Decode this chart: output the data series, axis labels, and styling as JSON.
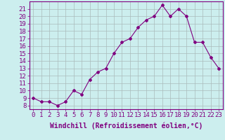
{
  "x": [
    0,
    1,
    2,
    3,
    4,
    5,
    6,
    7,
    8,
    9,
    10,
    11,
    12,
    13,
    14,
    15,
    16,
    17,
    18,
    19,
    20,
    21,
    22,
    23
  ],
  "y": [
    9.0,
    8.5,
    8.5,
    8.0,
    8.5,
    10.0,
    9.5,
    11.5,
    12.5,
    13.0,
    15.0,
    16.5,
    17.0,
    18.5,
    19.5,
    20.0,
    21.5,
    20.0,
    21.0,
    20.0,
    16.5,
    16.5,
    14.5,
    13.0
  ],
  "line_color": "#800080",
  "marker": "D",
  "marker_size": 2,
  "line_width": 0.8,
  "bg_color": "#cceeee",
  "grid_color": "#aabbbb",
  "xlabel": "Windchill (Refroidissement éolien,°C)",
  "xlabel_fontsize": 7,
  "ylabel_ticks": [
    8,
    9,
    10,
    11,
    12,
    13,
    14,
    15,
    16,
    17,
    18,
    19,
    20,
    21
  ],
  "xlim": [
    -0.5,
    23.5
  ],
  "ylim": [
    7.5,
    22.0
  ],
  "xticks": [
    0,
    1,
    2,
    3,
    4,
    5,
    6,
    7,
    8,
    9,
    10,
    11,
    12,
    13,
    14,
    15,
    16,
    17,
    18,
    19,
    20,
    21,
    22,
    23
  ],
  "tick_fontsize": 6.5,
  "axis_color": "#800080"
}
